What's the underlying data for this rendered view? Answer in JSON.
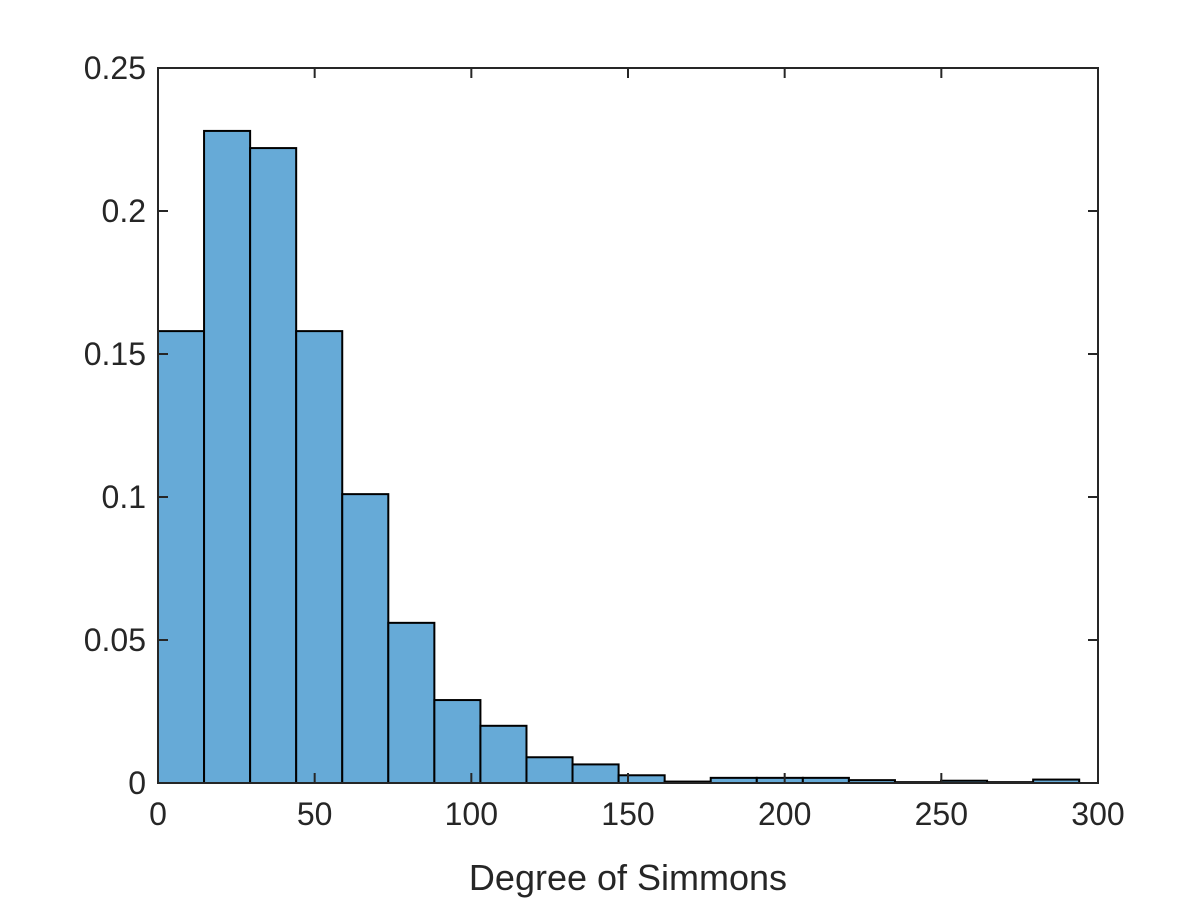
{
  "chart_data": {
    "type": "bar",
    "title": "",
    "xlabel": "Degree of Simmons",
    "ylabel": "",
    "xlim": [
      0,
      300
    ],
    "ylim": [
      0,
      0.25
    ],
    "xticks": [
      0,
      50,
      100,
      150,
      200,
      250,
      300
    ],
    "xtick_labels": [
      "0",
      "50",
      "100",
      "150",
      "200",
      "250",
      "300"
    ],
    "yticks": [
      0,
      0.05,
      0.1,
      0.15,
      0.2,
      0.25
    ],
    "ytick_labels": [
      "0",
      "0.05",
      "0.1",
      "0.15",
      "0.2",
      "0.25"
    ],
    "grid": false,
    "bar_color": "#66aad7",
    "bar_edge_color": "#000000",
    "bins": [
      {
        "x0": 0,
        "x1": 14.7,
        "value": 0.158
      },
      {
        "x0": 14.7,
        "x1": 29.4,
        "value": 0.228
      },
      {
        "x0": 29.4,
        "x1": 44.1,
        "value": 0.222
      },
      {
        "x0": 44.1,
        "x1": 58.8,
        "value": 0.158
      },
      {
        "x0": 58.8,
        "x1": 73.5,
        "value": 0.101
      },
      {
        "x0": 73.5,
        "x1": 88.2,
        "value": 0.056
      },
      {
        "x0": 88.2,
        "x1": 102.9,
        "value": 0.029
      },
      {
        "x0": 102.9,
        "x1": 117.6,
        "value": 0.02
      },
      {
        "x0": 117.6,
        "x1": 132.3,
        "value": 0.009
      },
      {
        "x0": 132.3,
        "x1": 147.0,
        "value": 0.0065
      },
      {
        "x0": 147.0,
        "x1": 161.7,
        "value": 0.0027
      },
      {
        "x0": 161.7,
        "x1": 176.4,
        "value": 0.0005
      },
      {
        "x0": 176.4,
        "x1": 191.1,
        "value": 0.0018
      },
      {
        "x0": 191.1,
        "x1": 205.8,
        "value": 0.0018
      },
      {
        "x0": 205.8,
        "x1": 220.5,
        "value": 0.0018
      },
      {
        "x0": 220.5,
        "x1": 235.2,
        "value": 0.001
      },
      {
        "x0": 235.2,
        "x1": 249.9,
        "value": 0.0003
      },
      {
        "x0": 249.9,
        "x1": 264.6,
        "value": 0.0008
      },
      {
        "x0": 264.6,
        "x1": 279.3,
        "value": 0.0003
      },
      {
        "x0": 279.3,
        "x1": 294.0,
        "value": 0.0012
      }
    ]
  }
}
